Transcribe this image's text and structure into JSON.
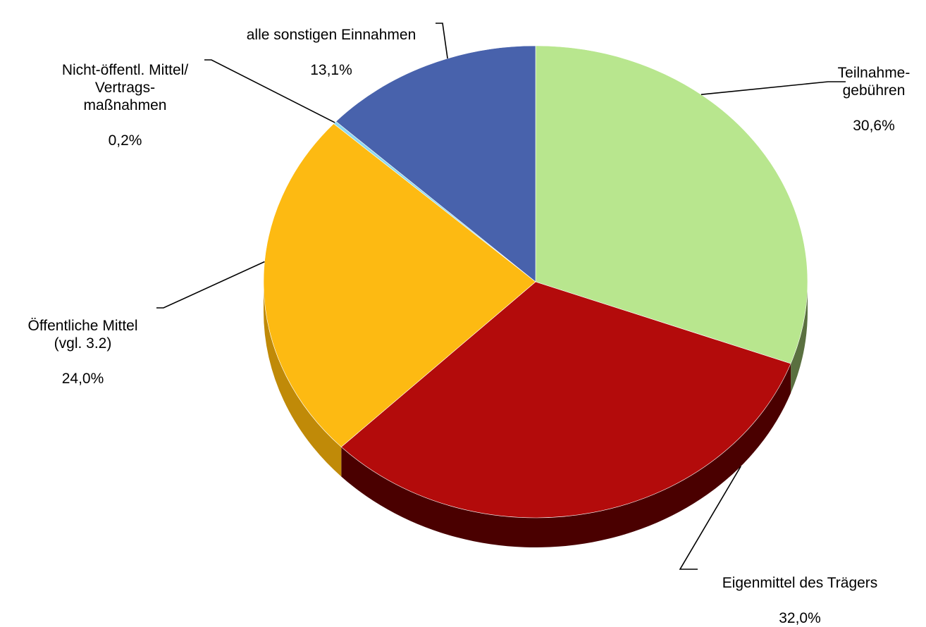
{
  "chart_data": {
    "type": "pie",
    "title": "",
    "legend": "none",
    "style": "3d",
    "slices": [
      {
        "label": "Teilnahme-\ngebühren",
        "value": 30.6,
        "value_label": "30,6%",
        "color": "#b8e68e",
        "side_color": "#5a7040"
      },
      {
        "label": "Eigenmittel des Trägers",
        "value": 32.0,
        "value_label": "32,0%",
        "color": "#b30b0b",
        "side_color": "#4a0000"
      },
      {
        "label": "Öffentliche Mittel\n(vgl. 3.2)",
        "value": 24.0,
        "value_label": "24,0%",
        "color": "#fdba12",
        "side_color": "#c08a08"
      },
      {
        "label": "Nicht-öffentl. Mittel/\nVertrags-\nmaßnahmen",
        "value": 0.2,
        "value_label": "0,2%",
        "color": "#8dd8f0",
        "side_color": "#5fa0b8"
      },
      {
        "label": "alle sonstigen Einnahmen",
        "value": 13.1,
        "value_label": "13,1%",
        "color": "#4862ac",
        "side_color": "#2a3a6a"
      }
    ]
  }
}
